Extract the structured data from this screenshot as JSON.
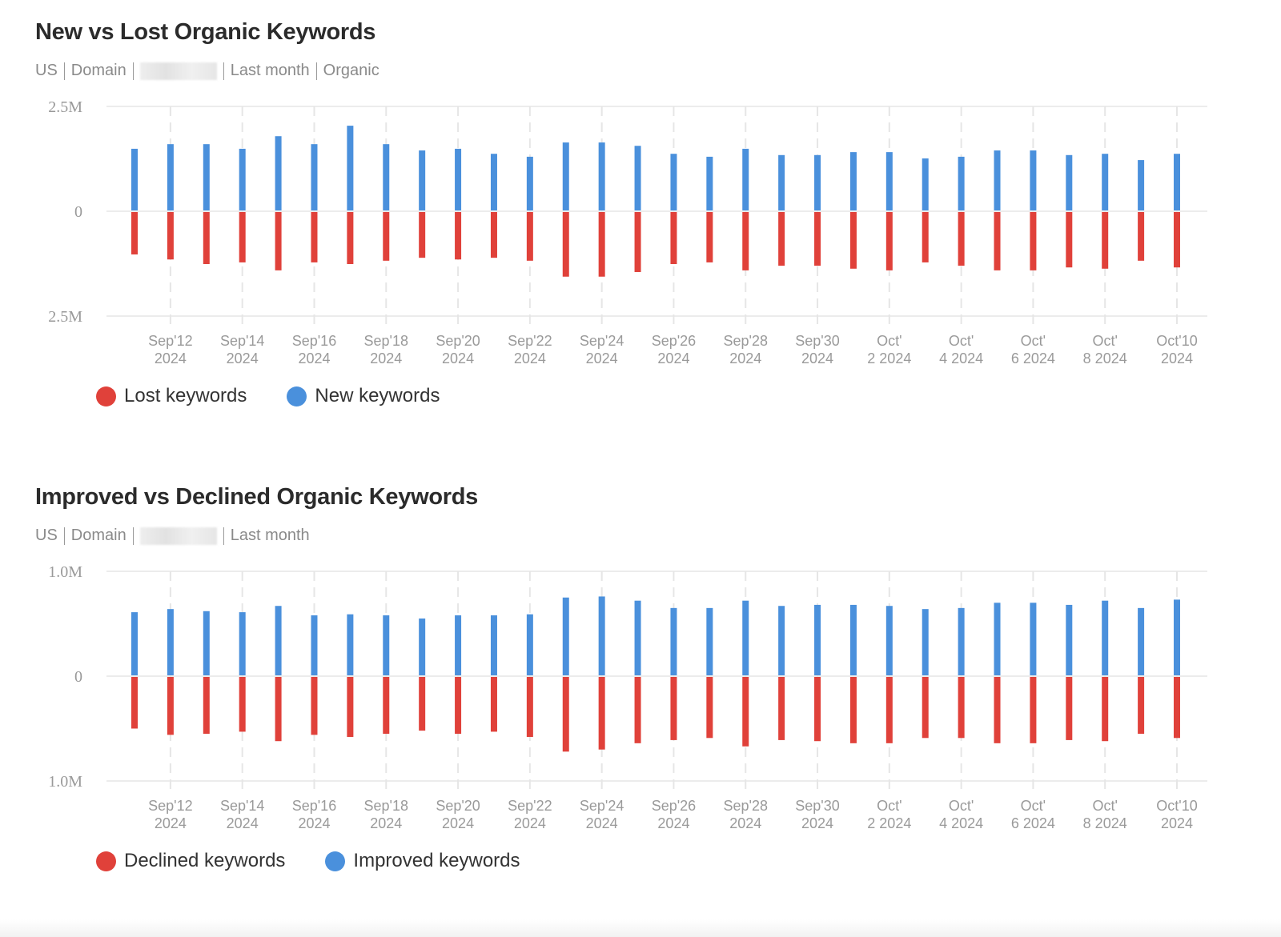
{
  "colors": {
    "negative": "#e0413a",
    "positive": "#4a90dc"
  },
  "chart_data": [
    {
      "type": "bar",
      "title": "New vs Lost Organic Keywords",
      "subtitle": [
        "US",
        "Domain",
        "",
        "Last month",
        "Organic"
      ],
      "x": [
        "Sep 11",
        "Sep 12",
        "Sep 13",
        "Sep 14",
        "Sep 15",
        "Sep 16",
        "Sep 17",
        "Sep 18",
        "Sep 19",
        "Sep 20",
        "Sep 21",
        "Sep 22",
        "Sep 23",
        "Sep 24",
        "Sep 25",
        "Sep 26",
        "Sep 27",
        "Sep 28",
        "Sep 29",
        "Sep 30",
        "Oct 1",
        "Oct 2",
        "Oct 3",
        "Oct 4",
        "Oct 5",
        "Oct 6",
        "Oct 7",
        "Oct 8",
        "Oct 9",
        "Oct 10"
      ],
      "tick_labels": [
        [
          "Sep'12",
          "2024"
        ],
        [
          "Sep'14",
          "2024"
        ],
        [
          "Sep'16",
          "2024"
        ],
        [
          "Sep'18",
          "2024"
        ],
        [
          "Sep'20",
          "2024"
        ],
        [
          "Sep'22",
          "2024"
        ],
        [
          "Sep'24",
          "2024"
        ],
        [
          "Sep'26",
          "2024"
        ],
        [
          "Sep'28",
          "2024"
        ],
        [
          "Sep'30",
          "2024"
        ],
        [
          "Oct'",
          "2 2024"
        ],
        [
          "Oct'",
          "4 2024"
        ],
        [
          "Oct'",
          "6 2024"
        ],
        [
          "Oct'",
          "8 2024"
        ],
        [
          "Oct'10",
          "2024"
        ]
      ],
      "y_ticks": [
        "2.5M",
        "0",
        "2.5M"
      ],
      "ylim": [
        -2500000,
        2500000
      ],
      "grid": true,
      "legend_placement": "bottom-left",
      "series": [
        {
          "name": "Lost keywords",
          "color": "#e0413a",
          "values": [
            -1030000,
            -1150000,
            -1260000,
            -1220000,
            -1410000,
            -1220000,
            -1260000,
            -1180000,
            -1110000,
            -1150000,
            -1110000,
            -1180000,
            -1560000,
            -1560000,
            -1450000,
            -1260000,
            -1220000,
            -1410000,
            -1300000,
            -1300000,
            -1370000,
            -1410000,
            -1220000,
            -1300000,
            -1410000,
            -1410000,
            -1340000,
            -1370000,
            -1180000,
            -1340000
          ]
        },
        {
          "name": "New keywords",
          "color": "#4a90dc",
          "values": [
            1490000,
            1600000,
            1600000,
            1490000,
            1790000,
            1600000,
            2040000,
            1600000,
            1450000,
            1490000,
            1370000,
            1300000,
            1640000,
            1640000,
            1560000,
            1370000,
            1300000,
            1490000,
            1340000,
            1340000,
            1410000,
            1410000,
            1260000,
            1300000,
            1450000,
            1450000,
            1340000,
            1370000,
            1220000,
            1370000
          ]
        }
      ]
    },
    {
      "type": "bar",
      "title": "Improved vs Declined Organic Keywords",
      "subtitle": [
        "US",
        "Domain",
        "",
        "Last month"
      ],
      "x": [
        "Sep 11",
        "Sep 12",
        "Sep 13",
        "Sep 14",
        "Sep 15",
        "Sep 16",
        "Sep 17",
        "Sep 18",
        "Sep 19",
        "Sep 20",
        "Sep 21",
        "Sep 22",
        "Sep 23",
        "Sep 24",
        "Sep 25",
        "Sep 26",
        "Sep 27",
        "Sep 28",
        "Sep 29",
        "Sep 30",
        "Oct 1",
        "Oct 2",
        "Oct 3",
        "Oct 4",
        "Oct 5",
        "Oct 6",
        "Oct 7",
        "Oct 8",
        "Oct 9",
        "Oct 10"
      ],
      "tick_labels": [
        [
          "Sep'12",
          "2024"
        ],
        [
          "Sep'14",
          "2024"
        ],
        [
          "Sep'16",
          "2024"
        ],
        [
          "Sep'18",
          "2024"
        ],
        [
          "Sep'20",
          "2024"
        ],
        [
          "Sep'22",
          "2024"
        ],
        [
          "Sep'24",
          "2024"
        ],
        [
          "Sep'26",
          "2024"
        ],
        [
          "Sep'28",
          "2024"
        ],
        [
          "Sep'30",
          "2024"
        ],
        [
          "Oct'",
          "2 2024"
        ],
        [
          "Oct'",
          "4 2024"
        ],
        [
          "Oct'",
          "6 2024"
        ],
        [
          "Oct'",
          "8 2024"
        ],
        [
          "Oct'10",
          "2024"
        ]
      ],
      "y_ticks": [
        "1.0M",
        "0",
        "1.0M"
      ],
      "ylim": [
        -1000000,
        1000000
      ],
      "grid": true,
      "legend_placement": "bottom-left",
      "series": [
        {
          "name": "Declined keywords",
          "color": "#e0413a",
          "values": [
            -500000,
            -560000,
            -550000,
            -530000,
            -620000,
            -560000,
            -580000,
            -550000,
            -520000,
            -550000,
            -530000,
            -580000,
            -720000,
            -700000,
            -640000,
            -610000,
            -590000,
            -670000,
            -610000,
            -620000,
            -640000,
            -640000,
            -590000,
            -590000,
            -640000,
            -640000,
            -610000,
            -620000,
            -550000,
            -590000
          ]
        },
        {
          "name": "Improved keywords",
          "color": "#4a90dc",
          "values": [
            610000,
            640000,
            620000,
            610000,
            670000,
            580000,
            590000,
            580000,
            550000,
            580000,
            580000,
            590000,
            750000,
            760000,
            720000,
            650000,
            650000,
            720000,
            670000,
            680000,
            680000,
            670000,
            640000,
            650000,
            700000,
            700000,
            680000,
            720000,
            650000,
            730000
          ]
        }
      ]
    }
  ]
}
